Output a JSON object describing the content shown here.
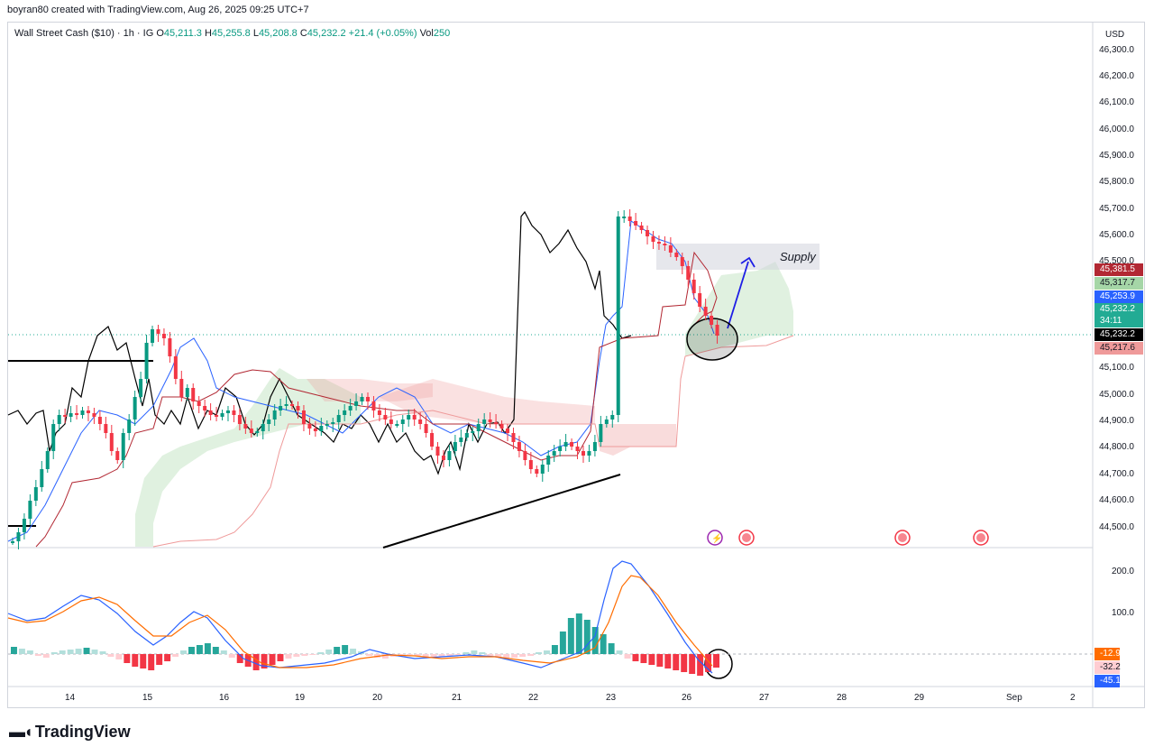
{
  "header": {
    "text": "boyran80 created with TradingView.com, Aug 26, 2025 09:25 UTC+7"
  },
  "legend": {
    "symbol": "Wall Street Cash ($10) · 1h · IG",
    "open_label": "O",
    "open": "45,211.3",
    "high_label": "H",
    "high": "45,255.8",
    "low_label": "L",
    "low": "45,208.8",
    "close_label": "C",
    "close": "45,232.2",
    "change": "+21.4 (+0.05%)",
    "volume_label": "Vol",
    "volume": "250"
  },
  "price_axis": {
    "currency": "USD",
    "ticks": [
      "46,300.0",
      "46,200.0",
      "46,100.0",
      "46,000.0",
      "45,900.0",
      "45,800.0",
      "45,700.0",
      "45,600.0",
      "45,500.0",
      "45,100.0",
      "45,000.0",
      "44,900.0",
      "44,800.0",
      "44,700.0",
      "44,600.0",
      "44,500.0"
    ]
  },
  "price_tags": [
    {
      "text": "45,381.5",
      "color": "#b22833"
    },
    {
      "text": "45,317.7",
      "color": "#a5d6a7",
      "text_color": "#131722"
    },
    {
      "text": "45,253.9",
      "color": "#2962ff"
    },
    {
      "text": "45,232.2",
      "color": "#22ab94"
    },
    {
      "text": "34:11",
      "color": "#22ab94"
    },
    {
      "text": "45,232.2",
      "color": "#000000"
    },
    {
      "text": "45,217.6",
      "color": "#ef9a9a",
      "text_color": "#131722"
    }
  ],
  "osc_axis": {
    "ticks": [
      "200.0",
      "100.0"
    ],
    "tags": [
      {
        "text": "-12.9",
        "color": "#ff6d00"
      },
      {
        "text": "-32.2",
        "color": "#ffcdd2",
        "text_color": "#131722"
      },
      {
        "text": "-45.1",
        "color": "#2962ff"
      }
    ]
  },
  "time_axis": {
    "labels": [
      "14",
      "15",
      "16",
      "19",
      "20",
      "21",
      "22",
      "23",
      "26",
      "27",
      "28",
      "29",
      "Sep",
      "2"
    ]
  },
  "annotation": {
    "supply": "Supply"
  },
  "brand": {
    "name": "TradingView",
    "logo_icon": "tradingview-logo-icon"
  },
  "colors": {
    "up": "#089981",
    "down": "#f23645",
    "blue_line": "#2962ff",
    "red_line": "#b22833",
    "cloud_green": "#a5d6a7",
    "cloud_red": "#ef9a9a",
    "orange": "#ff6d00"
  },
  "chart_data": {
    "type": "candlestick",
    "ylim": [
      44450,
      46330
    ],
    "last_price": 45232.2,
    "reference_levels": [
      45381.5,
      45317.7,
      45253.9,
      45232.2,
      45217.6
    ],
    "supply_zone": [
      45490,
      45570
    ],
    "oscillator": {
      "ylim": [
        -70,
        240
      ],
      "values": [
        -12.9,
        -32.2,
        -45.1
      ]
    }
  }
}
